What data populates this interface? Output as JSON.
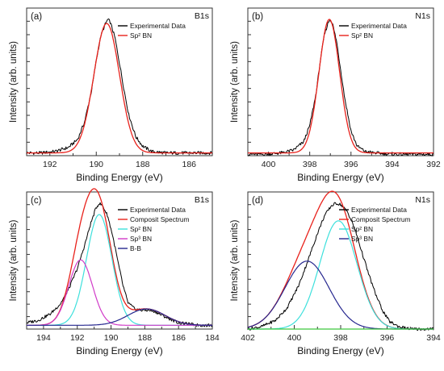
{
  "chart_data": [
    {
      "type": "line",
      "panel_label": "(a)",
      "corner_label": "B1s",
      "xlabel": "Binding Energy (eV)",
      "ylabel": "Intensity (arb. units)",
      "xlim": [
        193,
        185
      ],
      "x_ticks": [
        192,
        190,
        188,
        186
      ],
      "ylim": [
        0,
        1
      ],
      "y_tick_count": 10,
      "legend": "top-right",
      "series": [
        {
          "name": "Experimental Data",
          "color": "#000000",
          "kind": "noisy",
          "line_width": 1,
          "x": [
            193.0,
            192.4,
            191.8,
            191.2,
            190.8,
            190.5,
            190.2,
            190.0,
            189.8,
            189.6,
            189.5,
            189.4,
            189.2,
            189.0,
            188.8,
            188.6,
            188.3,
            188.0,
            187.6,
            187.0,
            186.4,
            185.8,
            185.0
          ],
          "y": [
            0.02,
            0.02,
            0.03,
            0.06,
            0.12,
            0.25,
            0.48,
            0.7,
            0.88,
            0.97,
            1.0,
            0.98,
            0.87,
            0.68,
            0.48,
            0.3,
            0.14,
            0.07,
            0.03,
            0.02,
            0.02,
            0.02,
            0.02
          ]
        },
        {
          "name": "Sp² BN",
          "color": "#e8211b",
          "kind": "gauss",
          "line_width": 1.3,
          "center": 189.55,
          "sigma": 0.55,
          "amplitude": 0.95,
          "baseline": 0.02
        }
      ]
    },
    {
      "type": "line",
      "panel_label": "(b)",
      "corner_label": "N1s",
      "xlabel": "Binding Energy (eV)",
      "ylabel": "Intensity (arb. units)",
      "xlim": [
        401,
        392
      ],
      "x_ticks": [
        400,
        398,
        396,
        394,
        392
      ],
      "ylim": [
        0,
        1
      ],
      "y_tick_count": 10,
      "legend": "top-right",
      "series": [
        {
          "name": "Experimental Data",
          "color": "#000000",
          "kind": "noisy",
          "line_width": 1,
          "x": [
            401.0,
            400.2,
            399.4,
            398.8,
            398.3,
            398.0,
            397.7,
            397.5,
            397.3,
            397.1,
            397.0,
            396.9,
            396.7,
            396.5,
            396.3,
            396.0,
            395.7,
            395.3,
            394.8,
            394.0,
            393.0,
            392.0
          ],
          "y": [
            0.01,
            0.01,
            0.02,
            0.04,
            0.1,
            0.22,
            0.45,
            0.68,
            0.88,
            0.98,
            1.0,
            0.97,
            0.84,
            0.63,
            0.42,
            0.18,
            0.07,
            0.03,
            0.02,
            0.01,
            0.01,
            0.01
          ]
        },
        {
          "name": "Sp² BN",
          "color": "#e8211b",
          "kind": "gauss",
          "line_width": 1.3,
          "center": 397.05,
          "sigma": 0.5,
          "amplitude": 0.98,
          "baseline": 0.02
        }
      ]
    },
    {
      "type": "line",
      "panel_label": "(c)",
      "corner_label": "B1s",
      "xlabel": "Binding Energy (eV)",
      "ylabel": "Intensity (arb. units)",
      "xlim": [
        195,
        184
      ],
      "x_ticks": [
        194,
        192,
        190,
        188,
        186,
        184
      ],
      "ylim": [
        0,
        1
      ],
      "y_tick_count": 10,
      "legend": "top-right",
      "series": [
        {
          "name": "Experimental Data",
          "color": "#000000",
          "kind": "noisy",
          "line_width": 1,
          "x": [
            195.0,
            194.3,
            193.6,
            193.0,
            192.5,
            192.0,
            191.6,
            191.2,
            190.9,
            190.7,
            190.5,
            190.2,
            189.9,
            189.6,
            189.3,
            189.0,
            188.6,
            188.2,
            187.8,
            187.4,
            187.0,
            186.5,
            186.0,
            185.4,
            184.8,
            184.0
          ],
          "y": [
            0.05,
            0.07,
            0.12,
            0.2,
            0.32,
            0.48,
            0.65,
            0.84,
            0.96,
            1.0,
            0.98,
            0.9,
            0.74,
            0.54,
            0.35,
            0.21,
            0.16,
            0.15,
            0.15,
            0.14,
            0.11,
            0.08,
            0.05,
            0.04,
            0.03,
            0.03
          ]
        },
        {
          "name": "Composit Spectrum",
          "color": "#e8211b",
          "kind": "sum",
          "line_width": 1.3,
          "baseline": 0.03
        },
        {
          "name": "Sp² BN",
          "color": "#3de0dc",
          "kind": "gauss",
          "line_width": 1.2,
          "center": 190.7,
          "sigma": 0.75,
          "amplitude": 0.88,
          "baseline": 0.03
        },
        {
          "name": "Sp³ BN",
          "color": "#d13ac8",
          "kind": "gauss",
          "line_width": 1.2,
          "center": 191.8,
          "sigma": 0.7,
          "amplitude": 0.52,
          "baseline": 0.03
        },
        {
          "name": "B-B",
          "color": "#26278f",
          "kind": "gauss",
          "line_width": 1.2,
          "center": 187.9,
          "sigma": 1.1,
          "amplitude": 0.13,
          "baseline": 0.03
        }
      ]
    },
    {
      "type": "line",
      "panel_label": "(d)",
      "corner_label": "N1s",
      "xlabel": "Binding Energy (eV)",
      "ylabel": "Intensity (arb. units)",
      "xlim": [
        402,
        394
      ],
      "x_ticks": [
        402,
        400,
        398,
        396,
        394
      ],
      "ylim": [
        0,
        1
      ],
      "y_tick_count": 10,
      "legend": "top-right",
      "series": [
        {
          "name": "Experimental Data",
          "color": "#000000",
          "kind": "noisy",
          "line_width": 1,
          "x": [
            402.0,
            401.4,
            400.8,
            400.3,
            399.8,
            399.4,
            399.0,
            398.7,
            398.4,
            398.2,
            398.0,
            397.7,
            397.4,
            397.1,
            396.8,
            396.5,
            396.2,
            395.9,
            395.5,
            395.0,
            394.5,
            394.0
          ],
          "y": [
            0.0,
            0.02,
            0.07,
            0.17,
            0.35,
            0.55,
            0.76,
            0.9,
            0.98,
            1.0,
            0.99,
            0.93,
            0.8,
            0.62,
            0.44,
            0.28,
            0.15,
            0.06,
            0.02,
            0.0,
            0.0,
            0.0
          ]
        },
        {
          "name": "Composit Spectrum",
          "color": "#e8211b",
          "kind": "sum",
          "line_width": 1.3,
          "baseline": 0.0
        },
        {
          "name": "Sp² BN",
          "color": "#3de0dc",
          "kind": "gauss",
          "line_width": 1.2,
          "center": 398.1,
          "sigma": 0.8,
          "amplitude": 0.86,
          "baseline": 0.0
        },
        {
          "name": "Sp³ BN",
          "color": "#26278f",
          "kind": "gauss",
          "line_width": 1.2,
          "center": 399.45,
          "sigma": 0.95,
          "amplitude": 0.54,
          "baseline": 0.0
        },
        {
          "name": "",
          "color": "#3cc63c",
          "kind": "flat",
          "line_width": 1.2,
          "value": 0.0
        }
      ]
    }
  ]
}
